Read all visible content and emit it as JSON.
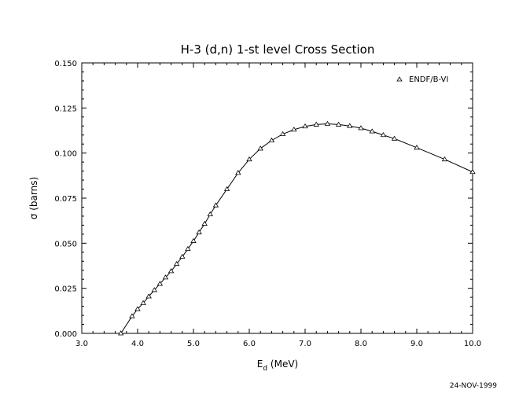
{
  "chart_data": {
    "type": "line",
    "title": "H-3 (d,n) 1-st level Cross Section",
    "xlabel_main": "E",
    "xlabel_sub": "d",
    "xlabel_unit": " (MeV)",
    "ylabel": "σ (barns)",
    "xlim": [
      3.0,
      10.0
    ],
    "ylim": [
      0.0,
      0.15
    ],
    "x_ticks": [
      "3.0",
      "4.0",
      "5.0",
      "6.0",
      "7.0",
      "8.0",
      "9.0",
      "10.0"
    ],
    "y_ticks": [
      "0.000",
      "0.025",
      "0.050",
      "0.075",
      "0.100",
      "0.125",
      "0.150"
    ],
    "legend_position": "top-right",
    "series": [
      {
        "name": "ENDF/B-VI",
        "marker": "triangle",
        "color": "#000000",
        "points": [
          [
            3.7,
            0.0
          ],
          [
            3.9,
            0.0095
          ],
          [
            4.0,
            0.0135
          ],
          [
            4.1,
            0.0168
          ],
          [
            4.2,
            0.0205
          ],
          [
            4.3,
            0.024
          ],
          [
            4.4,
            0.0275
          ],
          [
            4.5,
            0.031
          ],
          [
            4.6,
            0.0345
          ],
          [
            4.7,
            0.0385
          ],
          [
            4.8,
            0.0425
          ],
          [
            4.9,
            0.0468
          ],
          [
            5.0,
            0.0512
          ],
          [
            5.1,
            0.056
          ],
          [
            5.2,
            0.0608
          ],
          [
            5.3,
            0.066
          ],
          [
            5.4,
            0.071
          ],
          [
            5.6,
            0.08
          ],
          [
            5.8,
            0.089
          ],
          [
            6.0,
            0.0965
          ],
          [
            6.2,
            0.1025
          ],
          [
            6.4,
            0.107
          ],
          [
            6.6,
            0.1105
          ],
          [
            6.8,
            0.113
          ],
          [
            7.0,
            0.1148
          ],
          [
            7.2,
            0.1158
          ],
          [
            7.4,
            0.1162
          ],
          [
            7.6,
            0.1158
          ],
          [
            7.8,
            0.115
          ],
          [
            8.0,
            0.1138
          ],
          [
            8.2,
            0.112
          ],
          [
            8.4,
            0.11
          ],
          [
            8.6,
            0.108
          ],
          [
            9.0,
            0.103
          ],
          [
            9.5,
            0.0965
          ],
          [
            10.0,
            0.0895
          ]
        ]
      }
    ]
  },
  "footer": {
    "date": "24-NOV-1999"
  }
}
